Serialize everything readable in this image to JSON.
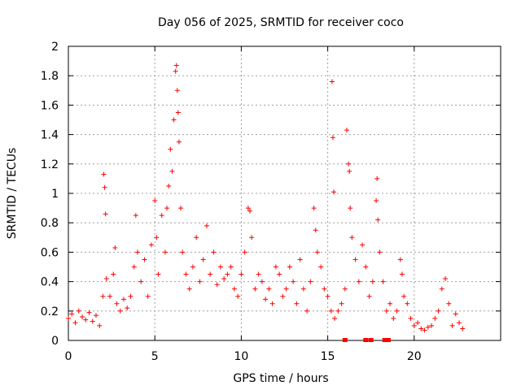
{
  "chart_data": {
    "type": "scatter",
    "title": "Day 056 of 2025, SRMTID for receiver coco",
    "xlabel": "GPS time / hours",
    "ylabel": "SRMTID / TECUs",
    "xlim": [
      0,
      25
    ],
    "ylim": [
      0,
      2
    ],
    "x_ticks": [
      0,
      5,
      10,
      15,
      20
    ],
    "x_tick_labels": [
      "0",
      "5",
      "10",
      "15",
      "20"
    ],
    "y_ticks": [
      0,
      0.2,
      0.4,
      0.6,
      0.8,
      1,
      1.2,
      1.4,
      1.6,
      1.8,
      2
    ],
    "y_tick_labels": [
      "0",
      "0.2",
      "0.4",
      "0.6",
      "0.8",
      "1",
      "1.2",
      "1.4",
      "1.6",
      "1.8",
      "2"
    ],
    "grid": true,
    "marker": "+",
    "series": [
      {
        "name": "SRMTID",
        "color": "#ff0000",
        "x": [
          0.0,
          0.2,
          0.4,
          0.6,
          0.8,
          1.0,
          1.2,
          1.4,
          1.6,
          1.8,
          2.0,
          2.05,
          2.1,
          2.15,
          2.2,
          2.4,
          2.6,
          2.7,
          2.8,
          3.0,
          3.2,
          3.4,
          3.6,
          3.8,
          3.9,
          4.0,
          4.2,
          4.4,
          4.6,
          4.8,
          5.0,
          5.1,
          5.2,
          5.4,
          5.6,
          5.7,
          5.8,
          5.9,
          6.0,
          6.1,
          6.2,
          6.25,
          6.3,
          6.35,
          6.4,
          6.5,
          6.6,
          6.8,
          7.0,
          7.2,
          7.4,
          7.6,
          7.8,
          8.0,
          8.2,
          8.4,
          8.6,
          8.8,
          9.0,
          9.2,
          9.4,
          9.6,
          9.8,
          10.0,
          10.2,
          10.4,
          10.5,
          10.6,
          10.8,
          11.0,
          11.2,
          11.4,
          11.6,
          11.8,
          12.0,
          12.2,
          12.4,
          12.6,
          12.8,
          13.0,
          13.2,
          13.4,
          13.6,
          13.8,
          14.0,
          14.2,
          14.3,
          14.4,
          14.6,
          14.8,
          15.0,
          15.2,
          15.25,
          15.3,
          15.35,
          15.4,
          15.6,
          15.8,
          16.0,
          16.1,
          16.2,
          16.25,
          16.3,
          16.4,
          16.6,
          16.8,
          17.0,
          17.2,
          17.4,
          17.6,
          17.8,
          17.85,
          17.9,
          18.0,
          18.2,
          18.4,
          18.6,
          18.8,
          19.0,
          19.2,
          19.3,
          19.4,
          19.6,
          19.8,
          20.0,
          20.2,
          20.4,
          20.6,
          20.8,
          21.0,
          21.2,
          21.4,
          21.6,
          21.8,
          22.0,
          22.2,
          22.4,
          22.6,
          22.8
        ],
        "y": [
          0.15,
          0.18,
          0.12,
          0.2,
          0.16,
          0.14,
          0.19,
          0.13,
          0.17,
          0.1,
          0.3,
          1.13,
          1.04,
          0.86,
          0.42,
          0.3,
          0.45,
          0.63,
          0.25,
          0.2,
          0.28,
          0.22,
          0.3,
          0.5,
          0.85,
          0.6,
          0.4,
          0.55,
          0.3,
          0.65,
          0.95,
          0.7,
          0.45,
          0.85,
          0.6,
          0.9,
          1.05,
          1.3,
          1.15,
          1.5,
          1.83,
          1.87,
          1.7,
          1.55,
          1.35,
          0.9,
          0.6,
          0.45,
          0.35,
          0.5,
          0.7,
          0.4,
          0.55,
          0.78,
          0.45,
          0.6,
          0.38,
          0.5,
          0.42,
          0.45,
          0.5,
          0.35,
          0.3,
          0.45,
          0.6,
          0.9,
          0.88,
          0.7,
          0.35,
          0.45,
          0.4,
          0.28,
          0.35,
          0.25,
          0.5,
          0.45,
          0.3,
          0.35,
          0.5,
          0.4,
          0.25,
          0.55,
          0.35,
          0.2,
          0.4,
          0.9,
          0.75,
          0.6,
          0.5,
          0.35,
          0.3,
          0.2,
          1.76,
          1.38,
          1.01,
          0.15,
          0.2,
          0.25,
          0.35,
          1.43,
          1.2,
          1.15,
          0.9,
          0.7,
          0.55,
          0.4,
          0.65,
          0.5,
          0.3,
          0.4,
          0.95,
          1.1,
          0.82,
          0.6,
          0.4,
          0.2,
          0.25,
          0.15,
          0.2,
          0.55,
          0.45,
          0.3,
          0.25,
          0.15,
          0.1,
          0.12,
          0.08,
          0.07,
          0.09,
          0.1,
          0.15,
          0.2,
          0.35,
          0.42,
          0.25,
          0.1,
          0.18,
          0.12,
          0.08
        ]
      }
    ],
    "zero_markers_x": [
      16.0,
      17.2,
      17.5,
      18.3,
      18.5
    ]
  }
}
